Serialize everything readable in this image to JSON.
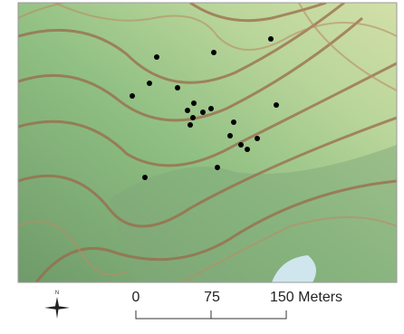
{
  "north_arrow": {
    "label": "N"
  },
  "scale_bar": {
    "labels": [
      "0",
      "75",
      "150 Meters"
    ]
  }
}
